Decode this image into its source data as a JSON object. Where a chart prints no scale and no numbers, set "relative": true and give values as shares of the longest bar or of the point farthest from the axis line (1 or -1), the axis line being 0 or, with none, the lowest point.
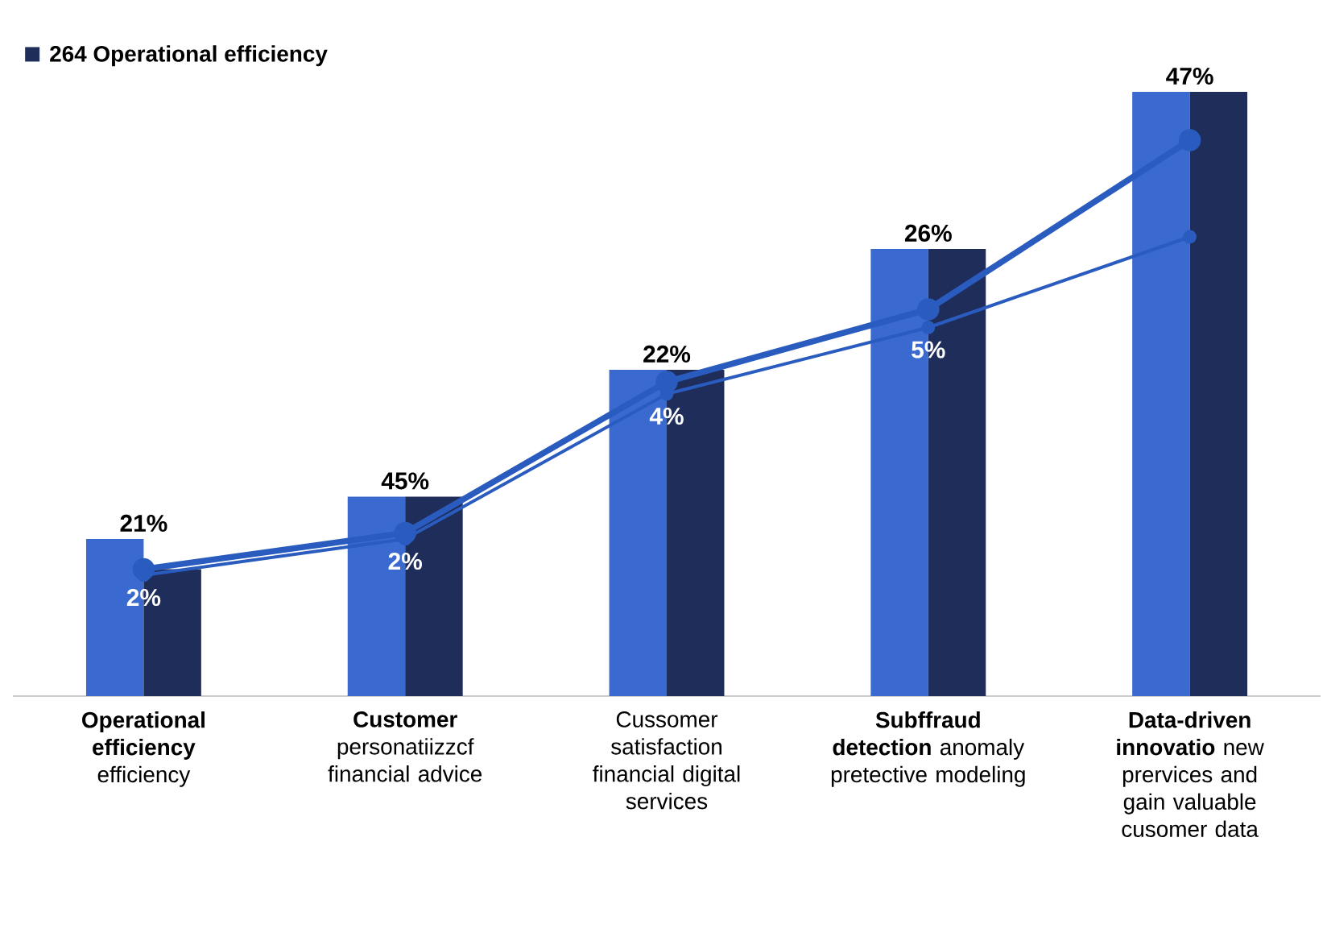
{
  "chart_data": {
    "type": "bar",
    "relative": true,
    "legend": "top left",
    "marker": "circle",
    "categories": [
      "**Operational efficiency** efficiency",
      "**Customer** personatiizzcf financial advice",
      "Cussomer satisfaction financial digital services",
      "**Subffraud detection** anomaly pretective modeling",
      "**Data-driven innovatio** new prervices and gain valuable cusomer data"
    ],
    "series": [
      {
        "color": "#3a6ad0",
        "values": [
          0.26,
          0.33,
          0.54,
          0.74,
          1
        ]
      },
      {
        "name": "264 Operational efficiency",
        "color": "#1f2d5a",
        "values": [
          0.21,
          0.33,
          0.54,
          0.74,
          1
        ]
      },
      {
        "type": "line",
        "color": "#2a5cbf",
        "values": [
          0.21,
          0.27,
          0.52,
          0.64,
          0.92
        ]
      },
      {
        "type": "line",
        "color": "#2a5cbf",
        "values": [
          0.2,
          0.26,
          0.5,
          0.61,
          0.76
        ]
      }
    ],
    "annotations": [
      {
        "text": "21%",
        "x": "**Operational efficiency** efficiency",
        "y": 0.26
      },
      {
        "text": "45%",
        "x": "**Customer** personatiizzcf financial advice",
        "y": 0.33
      },
      {
        "text": "22%",
        "x": "Cussomer satisfaction financial digital services",
        "y": 0.54
      },
      {
        "text": "26%",
        "x": "**Subffraud detection** anomaly pretective modeling",
        "y": 0.74
      },
      {
        "text": "47%",
        "x": "**Data-driven innovatio** new prervices and gain valuable cusomer data",
        "y": 1
      },
      {
        "text": "2%",
        "x": "**Operational efficiency** efficiency",
        "y": 0.2
      },
      {
        "text": "2%",
        "x": "**Customer** personatiizzcf financial advice",
        "y": 0.26
      },
      {
        "text": "4%",
        "x": "Cussomer satisfaction financial digital services",
        "y": 0.5
      },
      {
        "text": "5%",
        "x": "**Subffraud detection** anomaly pretective modeling",
        "y": 0.61
      }
    ]
  }
}
